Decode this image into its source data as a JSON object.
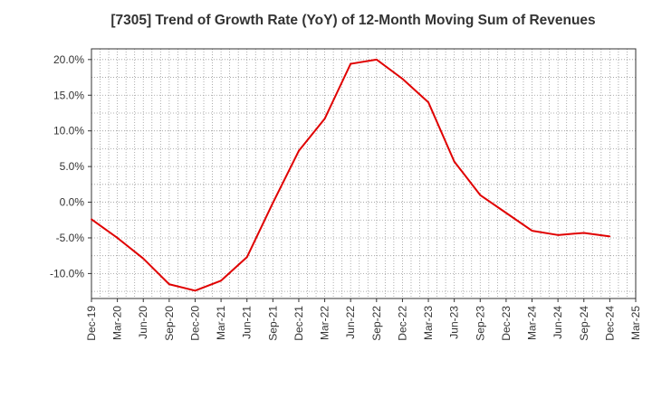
{
  "chart_data": {
    "type": "line",
    "title": "[7305]  Trend of Growth Rate (YoY) of 12-Month Moving Sum of Revenues",
    "xlabel": "",
    "ylabel": "",
    "x_tick_labels": [
      "Dec-19",
      "Mar-20",
      "Jun-20",
      "Sep-20",
      "Dec-20",
      "Mar-21",
      "Jun-21",
      "Sep-21",
      "Dec-21",
      "Mar-22",
      "Jun-22",
      "Sep-22",
      "Dec-22",
      "Mar-23",
      "Jun-23",
      "Sep-23",
      "Dec-23",
      "Mar-24",
      "Jun-24",
      "Sep-24",
      "Dec-24",
      "Mar-25"
    ],
    "y_tick_labels": [
      "20.0%",
      "15.0%",
      "10.0%",
      "5.0%",
      "0.0%",
      "-5.0%",
      "-10.0%"
    ],
    "y_ticks": [
      20,
      15,
      10,
      5,
      0,
      -5,
      -10
    ],
    "ylim": [
      -13.5,
      21.5
    ],
    "grid": true,
    "series": [
      {
        "color": "#e00000",
        "x": [
          "Dec-19",
          "Mar-20",
          "Jun-20",
          "Sep-20",
          "Dec-20",
          "Mar-21",
          "Jun-21",
          "Sep-21",
          "Dec-21",
          "Mar-22",
          "Jun-22",
          "Sep-22",
          "Dec-22",
          "Mar-23",
          "Jun-23",
          "Sep-23",
          "Dec-23",
          "Mar-24",
          "Jun-24",
          "Sep-24",
          "Dec-24"
        ],
        "values": [
          -2.4,
          -5.0,
          -7.9,
          -11.5,
          -12.4,
          -11.0,
          -7.7,
          -0.1,
          7.2,
          11.7,
          19.4,
          20.0,
          17.3,
          14.0,
          5.7,
          1.0,
          -1.5,
          -4.0,
          -4.6,
          -4.3,
          -4.8
        ]
      }
    ]
  }
}
